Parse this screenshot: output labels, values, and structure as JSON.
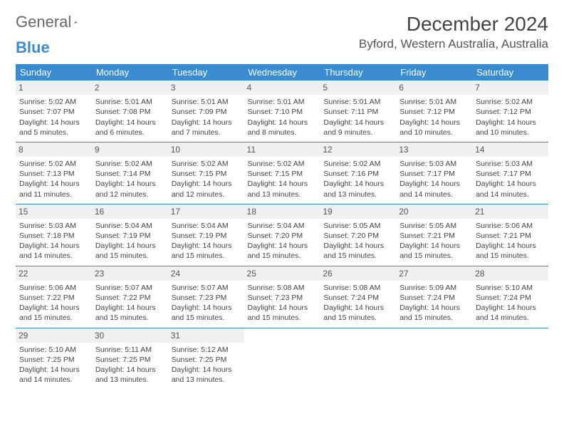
{
  "brand": {
    "word1": "General",
    "word2": "Blue"
  },
  "title": "December 2024",
  "location": "Byford, Western Australia, Australia",
  "colors": {
    "header_bg": "#3b8bd0",
    "header_text": "#ffffff",
    "daynum_bg": "#eef0f2",
    "row_sep": "#3b8bd0",
    "body_text": "#444444",
    "page_bg": "#ffffff"
  },
  "days_of_week": [
    "Sunday",
    "Monday",
    "Tuesday",
    "Wednesday",
    "Thursday",
    "Friday",
    "Saturday"
  ],
  "weeks": [
    [
      {
        "n": "1",
        "sunrise": "Sunrise: 5:02 AM",
        "sunset": "Sunset: 7:07 PM",
        "day1": "Daylight: 14 hours",
        "day2": "and 5 minutes."
      },
      {
        "n": "2",
        "sunrise": "Sunrise: 5:01 AM",
        "sunset": "Sunset: 7:08 PM",
        "day1": "Daylight: 14 hours",
        "day2": "and 6 minutes."
      },
      {
        "n": "3",
        "sunrise": "Sunrise: 5:01 AM",
        "sunset": "Sunset: 7:09 PM",
        "day1": "Daylight: 14 hours",
        "day2": "and 7 minutes."
      },
      {
        "n": "4",
        "sunrise": "Sunrise: 5:01 AM",
        "sunset": "Sunset: 7:10 PM",
        "day1": "Daylight: 14 hours",
        "day2": "and 8 minutes."
      },
      {
        "n": "5",
        "sunrise": "Sunrise: 5:01 AM",
        "sunset": "Sunset: 7:11 PM",
        "day1": "Daylight: 14 hours",
        "day2": "and 9 minutes."
      },
      {
        "n": "6",
        "sunrise": "Sunrise: 5:01 AM",
        "sunset": "Sunset: 7:12 PM",
        "day1": "Daylight: 14 hours",
        "day2": "and 10 minutes."
      },
      {
        "n": "7",
        "sunrise": "Sunrise: 5:02 AM",
        "sunset": "Sunset: 7:12 PM",
        "day1": "Daylight: 14 hours",
        "day2": "and 10 minutes."
      }
    ],
    [
      {
        "n": "8",
        "sunrise": "Sunrise: 5:02 AM",
        "sunset": "Sunset: 7:13 PM",
        "day1": "Daylight: 14 hours",
        "day2": "and 11 minutes."
      },
      {
        "n": "9",
        "sunrise": "Sunrise: 5:02 AM",
        "sunset": "Sunset: 7:14 PM",
        "day1": "Daylight: 14 hours",
        "day2": "and 12 minutes."
      },
      {
        "n": "10",
        "sunrise": "Sunrise: 5:02 AM",
        "sunset": "Sunset: 7:15 PM",
        "day1": "Daylight: 14 hours",
        "day2": "and 12 minutes."
      },
      {
        "n": "11",
        "sunrise": "Sunrise: 5:02 AM",
        "sunset": "Sunset: 7:15 PM",
        "day1": "Daylight: 14 hours",
        "day2": "and 13 minutes."
      },
      {
        "n": "12",
        "sunrise": "Sunrise: 5:02 AM",
        "sunset": "Sunset: 7:16 PM",
        "day1": "Daylight: 14 hours",
        "day2": "and 13 minutes."
      },
      {
        "n": "13",
        "sunrise": "Sunrise: 5:03 AM",
        "sunset": "Sunset: 7:17 PM",
        "day1": "Daylight: 14 hours",
        "day2": "and 14 minutes."
      },
      {
        "n": "14",
        "sunrise": "Sunrise: 5:03 AM",
        "sunset": "Sunset: 7:17 PM",
        "day1": "Daylight: 14 hours",
        "day2": "and 14 minutes."
      }
    ],
    [
      {
        "n": "15",
        "sunrise": "Sunrise: 5:03 AM",
        "sunset": "Sunset: 7:18 PM",
        "day1": "Daylight: 14 hours",
        "day2": "and 14 minutes."
      },
      {
        "n": "16",
        "sunrise": "Sunrise: 5:04 AM",
        "sunset": "Sunset: 7:19 PM",
        "day1": "Daylight: 14 hours",
        "day2": "and 15 minutes."
      },
      {
        "n": "17",
        "sunrise": "Sunrise: 5:04 AM",
        "sunset": "Sunset: 7:19 PM",
        "day1": "Daylight: 14 hours",
        "day2": "and 15 minutes."
      },
      {
        "n": "18",
        "sunrise": "Sunrise: 5:04 AM",
        "sunset": "Sunset: 7:20 PM",
        "day1": "Daylight: 14 hours",
        "day2": "and 15 minutes."
      },
      {
        "n": "19",
        "sunrise": "Sunrise: 5:05 AM",
        "sunset": "Sunset: 7:20 PM",
        "day1": "Daylight: 14 hours",
        "day2": "and 15 minutes."
      },
      {
        "n": "20",
        "sunrise": "Sunrise: 5:05 AM",
        "sunset": "Sunset: 7:21 PM",
        "day1": "Daylight: 14 hours",
        "day2": "and 15 minutes."
      },
      {
        "n": "21",
        "sunrise": "Sunrise: 5:06 AM",
        "sunset": "Sunset: 7:21 PM",
        "day1": "Daylight: 14 hours",
        "day2": "and 15 minutes."
      }
    ],
    [
      {
        "n": "22",
        "sunrise": "Sunrise: 5:06 AM",
        "sunset": "Sunset: 7:22 PM",
        "day1": "Daylight: 14 hours",
        "day2": "and 15 minutes."
      },
      {
        "n": "23",
        "sunrise": "Sunrise: 5:07 AM",
        "sunset": "Sunset: 7:22 PM",
        "day1": "Daylight: 14 hours",
        "day2": "and 15 minutes."
      },
      {
        "n": "24",
        "sunrise": "Sunrise: 5:07 AM",
        "sunset": "Sunset: 7:23 PM",
        "day1": "Daylight: 14 hours",
        "day2": "and 15 minutes."
      },
      {
        "n": "25",
        "sunrise": "Sunrise: 5:08 AM",
        "sunset": "Sunset: 7:23 PM",
        "day1": "Daylight: 14 hours",
        "day2": "and 15 minutes."
      },
      {
        "n": "26",
        "sunrise": "Sunrise: 5:08 AM",
        "sunset": "Sunset: 7:24 PM",
        "day1": "Daylight: 14 hours",
        "day2": "and 15 minutes."
      },
      {
        "n": "27",
        "sunrise": "Sunrise: 5:09 AM",
        "sunset": "Sunset: 7:24 PM",
        "day1": "Daylight: 14 hours",
        "day2": "and 15 minutes."
      },
      {
        "n": "28",
        "sunrise": "Sunrise: 5:10 AM",
        "sunset": "Sunset: 7:24 PM",
        "day1": "Daylight: 14 hours",
        "day2": "and 14 minutes."
      }
    ],
    [
      {
        "n": "29",
        "sunrise": "Sunrise: 5:10 AM",
        "sunset": "Sunset: 7:25 PM",
        "day1": "Daylight: 14 hours",
        "day2": "and 14 minutes."
      },
      {
        "n": "30",
        "sunrise": "Sunrise: 5:11 AM",
        "sunset": "Sunset: 7:25 PM",
        "day1": "Daylight: 14 hours",
        "day2": "and 13 minutes."
      },
      {
        "n": "31",
        "sunrise": "Sunrise: 5:12 AM",
        "sunset": "Sunset: 7:25 PM",
        "day1": "Daylight: 14 hours",
        "day2": "and 13 minutes."
      },
      null,
      null,
      null,
      null
    ]
  ]
}
